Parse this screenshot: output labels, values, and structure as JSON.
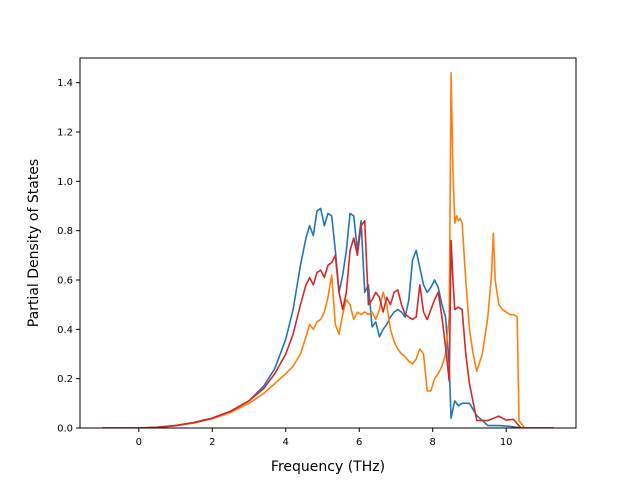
{
  "chart_data": {
    "type": "line",
    "title": "",
    "xlabel": "Frequency (THz)",
    "ylabel": "Partial Density of States",
    "xlim": [
      -1.6,
      11.9
    ],
    "ylim": [
      0.0,
      1.5
    ],
    "grid": false,
    "legend": "none",
    "xticks": [
      0,
      2,
      4,
      6,
      8,
      10
    ],
    "yticks": [
      0.0,
      0.2,
      0.4,
      0.6,
      0.8,
      1.0,
      1.2,
      1.4
    ],
    "xtick_labels": [
      "0",
      "2",
      "4",
      "6",
      "8",
      "10"
    ],
    "ytick_labels": [
      "0.0",
      "0.2",
      "0.4",
      "0.6",
      "0.8",
      "1.0",
      "1.2",
      "1.4"
    ],
    "series": [
      {
        "color": "#1f77b4",
        "x": [
          -1.0,
          0.0,
          0.5,
          1.0,
          1.5,
          2.0,
          2.5,
          3.0,
          3.4,
          3.7,
          4.0,
          4.2,
          4.4,
          4.55,
          4.65,
          4.75,
          4.85,
          4.95,
          5.05,
          5.15,
          5.25,
          5.35,
          5.45,
          5.55,
          5.65,
          5.75,
          5.85,
          5.95,
          6.05,
          6.15,
          6.25,
          6.35,
          6.45,
          6.55,
          6.65,
          6.75,
          6.85,
          6.95,
          7.05,
          7.15,
          7.25,
          7.35,
          7.45,
          7.55,
          7.65,
          7.75,
          7.85,
          7.95,
          8.05,
          8.15,
          8.25,
          8.35,
          8.45,
          8.5,
          8.6,
          8.7,
          8.8,
          8.9,
          9.0,
          9.2,
          9.5,
          9.8,
          10.0,
          10.2,
          10.4,
          11.3
        ],
        "y": [
          0.0,
          0.0,
          0.003,
          0.01,
          0.022,
          0.04,
          0.068,
          0.11,
          0.17,
          0.24,
          0.36,
          0.48,
          0.66,
          0.77,
          0.82,
          0.78,
          0.88,
          0.89,
          0.82,
          0.87,
          0.86,
          0.72,
          0.55,
          0.62,
          0.72,
          0.87,
          0.86,
          0.72,
          0.84,
          0.55,
          0.58,
          0.41,
          0.43,
          0.37,
          0.4,
          0.42,
          0.45,
          0.47,
          0.48,
          0.47,
          0.45,
          0.52,
          0.68,
          0.72,
          0.65,
          0.58,
          0.55,
          0.57,
          0.6,
          0.57,
          0.5,
          0.45,
          0.25,
          0.04,
          0.11,
          0.09,
          0.1,
          0.1,
          0.1,
          0.05,
          0.01,
          0.01,
          0.008,
          0.005,
          0.0,
          0.0
        ]
      },
      {
        "color": "#ff7f0e",
        "x": [
          -1.0,
          0.0,
          0.5,
          1.0,
          1.5,
          2.0,
          2.5,
          3.0,
          3.4,
          3.7,
          4.0,
          4.2,
          4.4,
          4.55,
          4.65,
          4.75,
          4.85,
          4.95,
          5.05,
          5.15,
          5.25,
          5.35,
          5.45,
          5.55,
          5.65,
          5.75,
          5.85,
          5.95,
          6.05,
          6.15,
          6.25,
          6.35,
          6.45,
          6.55,
          6.65,
          6.75,
          6.85,
          6.95,
          7.05,
          7.15,
          7.25,
          7.35,
          7.45,
          7.55,
          7.65,
          7.75,
          7.85,
          7.95,
          8.05,
          8.15,
          8.25,
          8.35,
          8.45,
          8.5,
          8.55,
          8.6,
          8.65,
          8.7,
          8.75,
          8.8,
          8.9,
          9.0,
          9.1,
          9.2,
          9.35,
          9.5,
          9.6,
          9.65,
          9.7,
          9.75,
          9.8,
          9.9,
          10.0,
          10.1,
          10.2,
          10.3,
          10.35,
          10.5,
          11.3
        ],
        "y": [
          0.0,
          0.0,
          0.003,
          0.009,
          0.02,
          0.037,
          0.063,
          0.1,
          0.14,
          0.18,
          0.22,
          0.25,
          0.3,
          0.37,
          0.42,
          0.4,
          0.43,
          0.44,
          0.47,
          0.53,
          0.62,
          0.42,
          0.38,
          0.46,
          0.52,
          0.5,
          0.44,
          0.47,
          0.46,
          0.47,
          0.46,
          0.47,
          0.44,
          0.48,
          0.55,
          0.5,
          0.4,
          0.35,
          0.32,
          0.3,
          0.29,
          0.27,
          0.26,
          0.28,
          0.32,
          0.3,
          0.15,
          0.15,
          0.2,
          0.22,
          0.25,
          0.3,
          0.45,
          1.44,
          1.05,
          0.83,
          0.86,
          0.84,
          0.85,
          0.83,
          0.6,
          0.4,
          0.3,
          0.23,
          0.3,
          0.45,
          0.62,
          0.79,
          0.6,
          0.55,
          0.5,
          0.48,
          0.47,
          0.46,
          0.46,
          0.45,
          0.03,
          0.0,
          0.0
        ]
      },
      {
        "color": "#d62728",
        "x": [
          -1.0,
          0.0,
          0.5,
          1.0,
          1.5,
          2.0,
          2.5,
          3.0,
          3.4,
          3.7,
          4.0,
          4.2,
          4.4,
          4.55,
          4.65,
          4.75,
          4.85,
          4.95,
          5.05,
          5.15,
          5.25,
          5.35,
          5.45,
          5.55,
          5.65,
          5.75,
          5.85,
          5.95,
          6.05,
          6.15,
          6.25,
          6.35,
          6.45,
          6.55,
          6.65,
          6.75,
          6.85,
          6.95,
          7.05,
          7.15,
          7.25,
          7.35,
          7.45,
          7.55,
          7.65,
          7.75,
          7.85,
          7.95,
          8.05,
          8.15,
          8.25,
          8.35,
          8.45,
          8.5,
          8.55,
          8.6,
          8.7,
          8.8,
          8.9,
          9.0,
          9.2,
          9.5,
          9.8,
          10.0,
          10.2,
          10.4,
          11.3
        ],
        "y": [
          0.0,
          0.0,
          0.003,
          0.01,
          0.022,
          0.04,
          0.068,
          0.11,
          0.16,
          0.22,
          0.3,
          0.38,
          0.5,
          0.58,
          0.61,
          0.58,
          0.63,
          0.64,
          0.61,
          0.66,
          0.67,
          0.7,
          0.55,
          0.48,
          0.55,
          0.72,
          0.77,
          0.7,
          0.82,
          0.84,
          0.5,
          0.52,
          0.55,
          0.53,
          0.47,
          0.53,
          0.5,
          0.55,
          0.56,
          0.5,
          0.46,
          0.45,
          0.44,
          0.45,
          0.58,
          0.47,
          0.44,
          0.48,
          0.52,
          0.55,
          0.45,
          0.33,
          0.19,
          0.76,
          0.6,
          0.48,
          0.49,
          0.48,
          0.3,
          0.18,
          0.03,
          0.03,
          0.048,
          0.032,
          0.035,
          0.0,
          0.0
        ]
      }
    ]
  }
}
